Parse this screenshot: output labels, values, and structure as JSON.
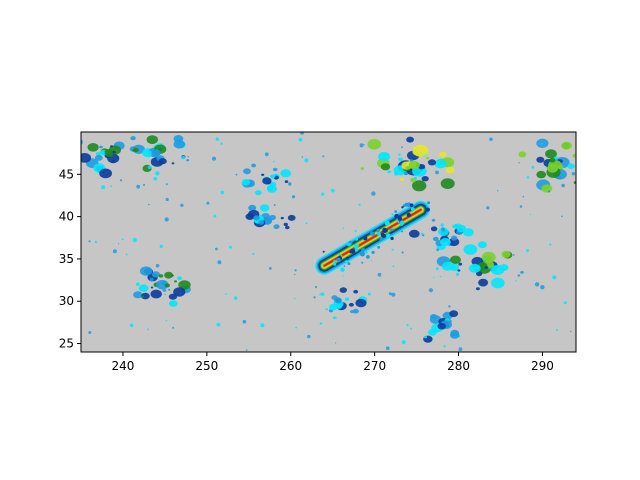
{
  "chart_data": {
    "type": "heatmap",
    "title": "",
    "xlabel": "",
    "ylabel": "",
    "xlim": [
      235,
      294
    ],
    "ylim": [
      24,
      50
    ],
    "x_ticks": [
      240,
      250,
      260,
      270,
      280,
      290
    ],
    "y_ticks": [
      25,
      30,
      35,
      40,
      45
    ],
    "background_color": "#c6c6c6",
    "colormap": [
      "#00e5ff",
      "#1f9be0",
      "#0a3c9c",
      "#1e8a1e",
      "#7bd12a",
      "#e6e62a",
      "#f08a1c",
      "#d32b1c"
    ],
    "features": [
      {
        "kind": "band",
        "x": [
          264,
          268,
          272,
          275.5
        ],
        "y": [
          34.2,
          36.5,
          38.8,
          40.8
        ],
        "level": 7
      },
      {
        "kind": "cluster",
        "x": 274,
        "y": 46,
        "level": 5
      },
      {
        "kind": "cluster",
        "x": 291.5,
        "y": 46,
        "level": 4
      },
      {
        "kind": "cluster",
        "x": 278,
        "y": 38,
        "level": 2
      },
      {
        "kind": "cluster",
        "x": 283,
        "y": 34,
        "level": 4
      },
      {
        "kind": "cluster",
        "x": 257,
        "y": 44.5,
        "level": 2
      },
      {
        "kind": "cluster",
        "x": 257,
        "y": 39.5,
        "level": 2
      },
      {
        "kind": "cluster",
        "x": 245,
        "y": 32,
        "level": 3
      },
      {
        "kind": "cluster",
        "x": 238,
        "y": 47.5,
        "level": 3
      },
      {
        "kind": "cluster",
        "x": 244,
        "y": 47.5,
        "level": 3
      },
      {
        "kind": "cluster",
        "x": 266,
        "y": 29.5,
        "level": 2
      },
      {
        "kind": "cluster",
        "x": 278,
        "y": 27,
        "level": 2
      }
    ]
  }
}
